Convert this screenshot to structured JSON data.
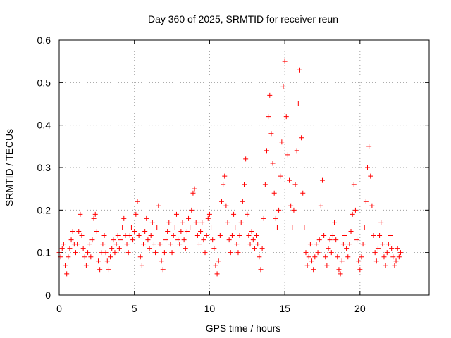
{
  "chart_data": {
    "type": "scatter",
    "title": "Day 360 of 2025, SRMTID for receiver reun",
    "xlabel": "GPS time / hours",
    "ylabel": "SRMTID / TECUs",
    "xlim": [
      0,
      24.6
    ],
    "ylim": [
      0,
      0.6
    ],
    "xticks": [
      0,
      5,
      10,
      15,
      20
    ],
    "yticks": [
      0,
      0.1,
      0.2,
      0.3,
      0.4,
      0.5,
      0.6
    ],
    "xtick_labels": [
      "0",
      "5",
      "10",
      "15",
      "20"
    ],
    "ytick_labels": [
      "0",
      "0.1",
      "0.2",
      "0.3",
      "0.4",
      "0.5",
      "0.6"
    ],
    "grid": true,
    "marker": "+",
    "color": "#ff0000",
    "series": [
      {
        "name": "SRMTID",
        "points": [
          [
            0.0,
            0.1
          ],
          [
            0.1,
            0.09
          ],
          [
            0.2,
            0.11
          ],
          [
            0.3,
            0.12
          ],
          [
            0.4,
            0.07
          ],
          [
            0.5,
            0.05
          ],
          [
            0.6,
            0.09
          ],
          [
            0.7,
            0.11
          ],
          [
            0.8,
            0.13
          ],
          [
            0.9,
            0.15
          ],
          [
            1.0,
            0.12
          ],
          [
            1.1,
            0.1
          ],
          [
            1.2,
            0.12
          ],
          [
            1.3,
            0.15
          ],
          [
            1.4,
            0.19
          ],
          [
            1.5,
            0.14
          ],
          [
            1.6,
            0.11
          ],
          [
            1.7,
            0.09
          ],
          [
            1.8,
            0.07
          ],
          [
            1.9,
            0.1
          ],
          [
            2.0,
            0.12
          ],
          [
            2.1,
            0.09
          ],
          [
            2.2,
            0.13
          ],
          [
            2.3,
            0.18
          ],
          [
            2.4,
            0.19
          ],
          [
            2.5,
            0.15
          ],
          [
            2.6,
            0.08
          ],
          [
            2.7,
            0.06
          ],
          [
            2.8,
            0.1
          ],
          [
            2.9,
            0.12
          ],
          [
            3.0,
            0.14
          ],
          [
            3.1,
            0.1
          ],
          [
            3.2,
            0.08
          ],
          [
            3.3,
            0.06
          ],
          [
            3.4,
            0.09
          ],
          [
            3.5,
            0.11
          ],
          [
            3.6,
            0.13
          ],
          [
            3.7,
            0.1
          ],
          [
            3.8,
            0.12
          ],
          [
            3.9,
            0.14
          ],
          [
            4.0,
            0.11
          ],
          [
            4.1,
            0.13
          ],
          [
            4.2,
            0.16
          ],
          [
            4.3,
            0.18
          ],
          [
            4.4,
            0.14
          ],
          [
            4.5,
            0.12
          ],
          [
            4.6,
            0.1
          ],
          [
            4.7,
            0.14
          ],
          [
            4.8,
            0.16
          ],
          [
            4.9,
            0.13
          ],
          [
            5.0,
            0.15
          ],
          [
            5.1,
            0.19
          ],
          [
            5.2,
            0.22
          ],
          [
            5.3,
            0.14
          ],
          [
            5.4,
            0.09
          ],
          [
            5.5,
            0.07
          ],
          [
            5.6,
            0.12
          ],
          [
            5.7,
            0.15
          ],
          [
            5.8,
            0.18
          ],
          [
            5.9,
            0.13
          ],
          [
            6.0,
            0.11
          ],
          [
            6.1,
            0.14
          ],
          [
            6.2,
            0.17
          ],
          [
            6.3,
            0.12
          ],
          [
            6.4,
            0.1
          ],
          [
            6.5,
            0.16
          ],
          [
            6.6,
            0.21
          ],
          [
            6.7,
            0.12
          ],
          [
            6.8,
            0.08
          ],
          [
            6.9,
            0.06
          ],
          [
            7.0,
            0.1
          ],
          [
            7.1,
            0.13
          ],
          [
            7.2,
            0.15
          ],
          [
            7.3,
            0.17
          ],
          [
            7.4,
            0.12
          ],
          [
            7.5,
            0.1
          ],
          [
            7.6,
            0.14
          ],
          [
            7.7,
            0.16
          ],
          [
            7.8,
            0.19
          ],
          [
            7.9,
            0.13
          ],
          [
            8.0,
            0.12
          ],
          [
            8.1,
            0.15
          ],
          [
            8.2,
            0.17
          ],
          [
            8.3,
            0.13
          ],
          [
            8.4,
            0.11
          ],
          [
            8.5,
            0.15
          ],
          [
            8.6,
            0.18
          ],
          [
            8.7,
            0.16
          ],
          [
            8.8,
            0.2
          ],
          [
            8.9,
            0.24
          ],
          [
            9.0,
            0.25
          ],
          [
            9.1,
            0.17
          ],
          [
            9.2,
            0.14
          ],
          [
            9.3,
            0.12
          ],
          [
            9.4,
            0.15
          ],
          [
            9.5,
            0.17
          ],
          [
            9.6,
            0.13
          ],
          [
            9.7,
            0.1
          ],
          [
            9.8,
            0.14
          ],
          [
            9.9,
            0.18
          ],
          [
            10.0,
            0.19
          ],
          [
            10.1,
            0.16
          ],
          [
            10.2,
            0.13
          ],
          [
            10.3,
            0.11
          ],
          [
            10.4,
            0.07
          ],
          [
            10.5,
            0.05
          ],
          [
            10.6,
            0.08
          ],
          [
            10.7,
            0.14
          ],
          [
            10.8,
            0.22
          ],
          [
            10.9,
            0.26
          ],
          [
            11.0,
            0.28
          ],
          [
            11.1,
            0.21
          ],
          [
            11.2,
            0.17
          ],
          [
            11.3,
            0.13
          ],
          [
            11.4,
            0.1
          ],
          [
            11.5,
            0.14
          ],
          [
            11.6,
            0.19
          ],
          [
            11.7,
            0.16
          ],
          [
            11.8,
            0.12
          ],
          [
            11.9,
            0.1
          ],
          [
            12.0,
            0.14
          ],
          [
            12.1,
            0.17
          ],
          [
            12.2,
            0.22
          ],
          [
            12.3,
            0.26
          ],
          [
            12.4,
            0.32
          ],
          [
            12.5,
            0.19
          ],
          [
            12.6,
            0.14
          ],
          [
            12.7,
            0.12
          ],
          [
            12.8,
            0.15
          ],
          [
            12.9,
            0.13
          ],
          [
            13.0,
            0.11
          ],
          [
            13.1,
            0.14
          ],
          [
            13.2,
            0.12
          ],
          [
            13.3,
            0.09
          ],
          [
            13.4,
            0.06
          ],
          [
            13.5,
            0.11
          ],
          [
            13.6,
            0.18
          ],
          [
            13.7,
            0.26
          ],
          [
            13.8,
            0.34
          ],
          [
            13.9,
            0.42
          ],
          [
            14.0,
            0.47
          ],
          [
            14.1,
            0.38
          ],
          [
            14.2,
            0.31
          ],
          [
            14.3,
            0.24
          ],
          [
            14.4,
            0.18
          ],
          [
            14.5,
            0.16
          ],
          [
            14.6,
            0.2
          ],
          [
            14.7,
            0.28
          ],
          [
            14.8,
            0.36
          ],
          [
            14.9,
            0.49
          ],
          [
            15.0,
            0.55
          ],
          [
            15.1,
            0.42
          ],
          [
            15.2,
            0.33
          ],
          [
            15.3,
            0.27
          ],
          [
            15.4,
            0.21
          ],
          [
            15.5,
            0.16
          ],
          [
            15.6,
            0.2
          ],
          [
            15.7,
            0.26
          ],
          [
            15.8,
            0.34
          ],
          [
            15.9,
            0.45
          ],
          [
            16.0,
            0.53
          ],
          [
            16.1,
            0.37
          ],
          [
            16.2,
            0.24
          ],
          [
            16.3,
            0.16
          ],
          [
            16.4,
            0.1
          ],
          [
            16.5,
            0.07
          ],
          [
            16.6,
            0.09
          ],
          [
            16.7,
            0.12
          ],
          [
            16.8,
            0.08
          ],
          [
            16.9,
            0.06
          ],
          [
            17.0,
            0.09
          ],
          [
            17.1,
            0.12
          ],
          [
            17.2,
            0.1
          ],
          [
            17.3,
            0.13
          ],
          [
            17.4,
            0.21
          ],
          [
            17.5,
            0.27
          ],
          [
            17.6,
            0.14
          ],
          [
            17.7,
            0.09
          ],
          [
            17.8,
            0.07
          ],
          [
            17.9,
            0.11
          ],
          [
            18.0,
            0.13
          ],
          [
            18.1,
            0.1
          ],
          [
            18.2,
            0.14
          ],
          [
            18.3,
            0.17
          ],
          [
            18.4,
            0.13
          ],
          [
            18.5,
            0.09
          ],
          [
            18.6,
            0.06
          ],
          [
            18.7,
            0.05
          ],
          [
            18.8,
            0.08
          ],
          [
            18.9,
            0.12
          ],
          [
            19.0,
            0.14
          ],
          [
            19.1,
            0.11
          ],
          [
            19.2,
            0.09
          ],
          [
            19.3,
            0.12
          ],
          [
            19.4,
            0.15
          ],
          [
            19.5,
            0.19
          ],
          [
            19.6,
            0.26
          ],
          [
            19.7,
            0.2
          ],
          [
            19.8,
            0.13
          ],
          [
            19.9,
            0.08
          ],
          [
            20.0,
            0.06
          ],
          [
            20.1,
            0.09
          ],
          [
            20.2,
            0.12
          ],
          [
            20.3,
            0.16
          ],
          [
            20.4,
            0.22
          ],
          [
            20.5,
            0.3
          ],
          [
            20.6,
            0.35
          ],
          [
            20.7,
            0.28
          ],
          [
            20.8,
            0.21
          ],
          [
            20.9,
            0.14
          ],
          [
            21.0,
            0.1
          ],
          [
            21.1,
            0.08
          ],
          [
            21.2,
            0.11
          ],
          [
            21.3,
            0.14
          ],
          [
            21.4,
            0.17
          ],
          [
            21.5,
            0.12
          ],
          [
            21.6,
            0.09
          ],
          [
            21.7,
            0.07
          ],
          [
            21.8,
            0.1
          ],
          [
            21.9,
            0.12
          ],
          [
            22.0,
            0.14
          ],
          [
            22.1,
            0.11
          ],
          [
            22.2,
            0.09
          ],
          [
            22.3,
            0.07
          ],
          [
            22.4,
            0.08
          ],
          [
            22.5,
            0.11
          ],
          [
            22.6,
            0.09
          ],
          [
            22.7,
            0.1
          ]
        ]
      }
    ]
  }
}
